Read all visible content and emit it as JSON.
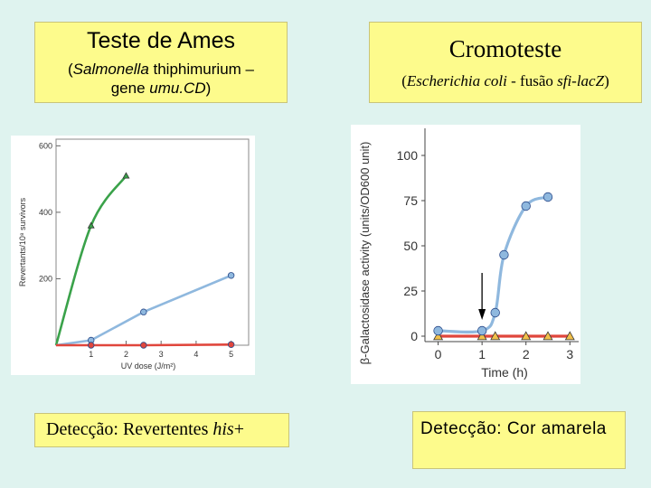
{
  "ames_box": {
    "title": "Teste de Ames",
    "subtitle_line1_pre": "(",
    "subtitle_line1_italic": "Salmonella",
    "subtitle_line1_post": " thiphimurium –",
    "subtitle_line2_pre": "gene ",
    "subtitle_line2_italic": "umu.CD",
    "subtitle_line2_post": ")"
  },
  "cromo_box": {
    "title": "Cromoteste",
    "subtitle_pre": "(",
    "subtitle_italic1": "Escherichia coli",
    "subtitle_mid": " - fusão ",
    "subtitle_italic2": "sfi-lacZ",
    "subtitle_post": ")"
  },
  "detect_left": {
    "text_pre": "Detecção: Revertentes ",
    "text_italic": "his",
    "text_post": "+"
  },
  "detect_right": {
    "text": "Detecção: Cor amarela"
  },
  "chart_data": [
    {
      "type": "line",
      "xlabel": "UV dose (J/m²)",
      "ylabel": "Revertants/10⁸ survivors",
      "xlim": [
        0,
        5.5
      ],
      "ylim": [
        0,
        620
      ],
      "xticks": [
        1,
        2,
        3,
        4,
        5
      ],
      "yticks": [
        200,
        400,
        600
      ],
      "series": [
        {
          "color": "#3aa24a",
          "marker": "triangle",
          "x": [
            0,
            1,
            2
          ],
          "y": [
            0,
            360,
            510
          ]
        },
        {
          "color": "#8fb8de",
          "marker": "circle",
          "x": [
            0,
            1,
            2.5,
            5
          ],
          "y": [
            0,
            15,
            100,
            210
          ]
        },
        {
          "color": "#e0463c",
          "marker": "circle",
          "x": [
            0,
            1,
            2.5,
            5
          ],
          "y": [
            0,
            0,
            0,
            2
          ]
        }
      ]
    },
    {
      "type": "line",
      "xlabel": "Time (h)",
      "ylabel": "β-Galactosidase activity (units/OD600 unit)",
      "xlim": [
        -0.3,
        3.2
      ],
      "ylim": [
        -3,
        115
      ],
      "xticks": [
        0,
        1,
        2,
        3
      ],
      "yticks": [
        0,
        25,
        50,
        75,
        100
      ],
      "annotation": "arrow at t=1.0",
      "series": [
        {
          "color": "#8fb8de",
          "marker": "circle",
          "x": [
            0,
            1,
            1.3,
            1.5,
            2,
            2.5
          ],
          "y": [
            3,
            3,
            13,
            45,
            72,
            77
          ]
        },
        {
          "color": "#e0463c",
          "marker": "triangle",
          "x": [
            0,
            1,
            1.3,
            2,
            2.5,
            3
          ],
          "y": [
            0,
            0,
            0,
            0,
            0,
            0
          ]
        }
      ]
    }
  ]
}
